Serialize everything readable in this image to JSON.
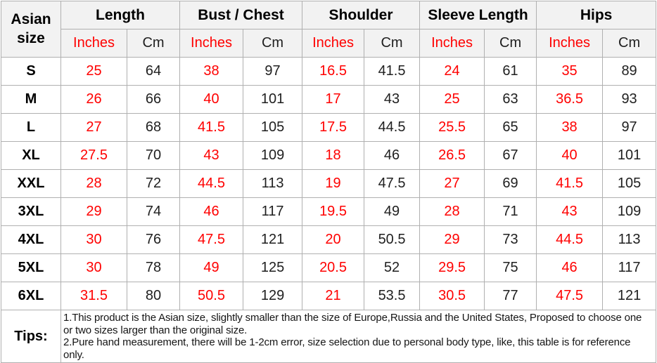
{
  "colors": {
    "accent_red": "#ff0000",
    "text_dark": "#1f1f1f",
    "header_bg": "#f2f2f2",
    "border": "#b0b0b0",
    "row_bg": "#ffffff"
  },
  "table": {
    "corner_label": "Asian size",
    "group_labels": [
      "Length",
      "Bust / Chest",
      "Shoulder",
      "Sleeve Length",
      "Hips"
    ],
    "unit_inches": "Inches",
    "unit_cm": "Cm",
    "rows": [
      {
        "size": "S",
        "values": [
          "25",
          "64",
          "38",
          "97",
          "16.5",
          "41.5",
          "24",
          "61",
          "35",
          "89"
        ]
      },
      {
        "size": "M",
        "values": [
          "26",
          "66",
          "40",
          "101",
          "17",
          "43",
          "25",
          "63",
          "36.5",
          "93"
        ]
      },
      {
        "size": "L",
        "values": [
          "27",
          "68",
          "41.5",
          "105",
          "17.5",
          "44.5",
          "25.5",
          "65",
          "38",
          "97"
        ]
      },
      {
        "size": "XL",
        "values": [
          "27.5",
          "70",
          "43",
          "109",
          "18",
          "46",
          "26.5",
          "67",
          "40",
          "101"
        ]
      },
      {
        "size": "XXL",
        "values": [
          "28",
          "72",
          "44.5",
          "113",
          "19",
          "47.5",
          "27",
          "69",
          "41.5",
          "105"
        ]
      },
      {
        "size": "3XL",
        "values": [
          "29",
          "74",
          "46",
          "117",
          "19.5",
          "49",
          "28",
          "71",
          "43",
          "109"
        ]
      },
      {
        "size": "4XL",
        "values": [
          "30",
          "76",
          "47.5",
          "121",
          "20",
          "50.5",
          "29",
          "73",
          "44.5",
          "113"
        ]
      },
      {
        "size": "5XL",
        "values": [
          "30",
          "78",
          "49",
          "125",
          "20.5",
          "52",
          "29.5",
          "75",
          "46",
          "117"
        ]
      },
      {
        "size": "6XL",
        "values": [
          "31.5",
          "80",
          "50.5",
          "129",
          "21",
          "53.5",
          "30.5",
          "77",
          "47.5",
          "121"
        ]
      }
    ],
    "tips_label": "Tips:",
    "tips": [
      "1.This product is the Asian size, slightly smaller than the size of Europe,Russia and the United States, Proposed to choose one or two sizes larger than the original size.",
      "2.Pure hand measurement, there will be 1-2cm error, size selection due to personal body type, like, this table is for reference only."
    ]
  }
}
